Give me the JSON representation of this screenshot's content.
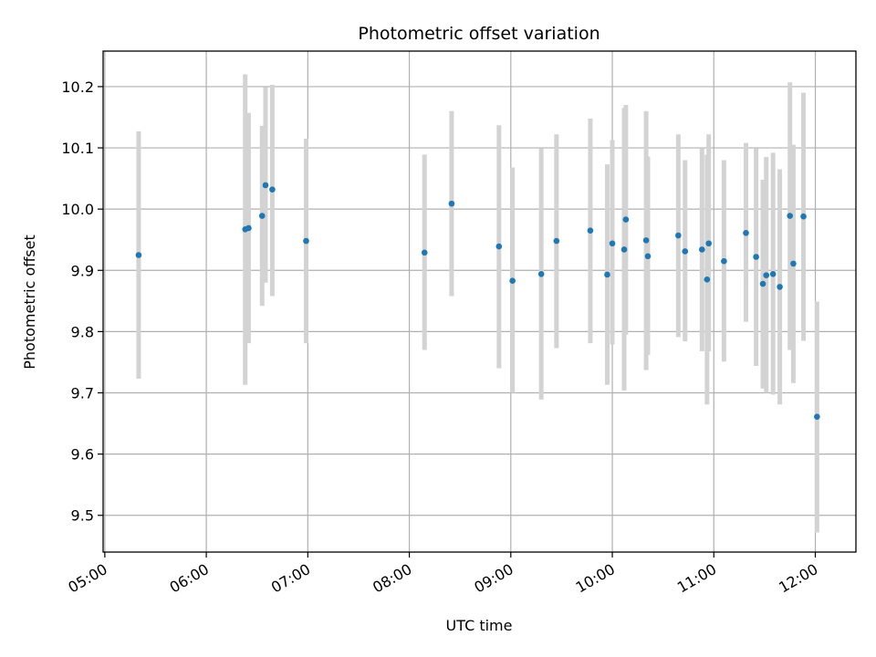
{
  "chart_data": {
    "type": "scatter",
    "title": "Photometric offset variation",
    "xlabel": "UTC time",
    "ylabel": "Photometric offset",
    "xlim": [
      "04:59",
      "12:24"
    ],
    "ylim": [
      9.44,
      10.258
    ],
    "x_ticks": [
      "05:00",
      "06:00",
      "07:00",
      "08:00",
      "09:00",
      "10:00",
      "11:00",
      "12:00"
    ],
    "y_ticks": [
      "9.5",
      "9.6",
      "9.7",
      "9.8",
      "9.9",
      "10.0",
      "10.1",
      "10.2"
    ],
    "grid": true,
    "points": [
      {
        "x": "05:20",
        "y": 9.925,
        "err_low": 9.723,
        "err_high": 10.127
      },
      {
        "x": "06:23",
        "y": 9.967,
        "err_low": 9.713,
        "err_high": 10.22
      },
      {
        "x": "06:25",
        "y": 9.969,
        "err_low": 9.781,
        "err_high": 10.157
      },
      {
        "x": "06:33",
        "y": 9.989,
        "err_low": 9.842,
        "err_high": 10.136
      },
      {
        "x": "06:35",
        "y": 10.039,
        "err_low": 9.88,
        "err_high": 10.199
      },
      {
        "x": "06:39",
        "y": 10.032,
        "err_low": 9.858,
        "err_high": 10.203
      },
      {
        "x": "06:59",
        "y": 9.948,
        "err_low": 9.781,
        "err_high": 10.115
      },
      {
        "x": "08:09",
        "y": 9.929,
        "err_low": 9.77,
        "err_high": 10.089
      },
      {
        "x": "08:25",
        "y": 10.009,
        "err_low": 9.858,
        "err_high": 10.16
      },
      {
        "x": "08:53",
        "y": 9.939,
        "err_low": 9.74,
        "err_high": 10.137
      },
      {
        "x": "09:01",
        "y": 9.883,
        "err_low": 9.7,
        "err_high": 10.068
      },
      {
        "x": "09:18",
        "y": 9.894,
        "err_low": 9.689,
        "err_high": 10.099
      },
      {
        "x": "09:27",
        "y": 9.948,
        "err_low": 9.773,
        "err_high": 10.122
      },
      {
        "x": "09:47",
        "y": 9.965,
        "err_low": 9.781,
        "err_high": 10.148
      },
      {
        "x": "09:57",
        "y": 9.893,
        "err_low": 9.713,
        "err_high": 10.073
      },
      {
        "x": "10:00",
        "y": 9.944,
        "err_low": 9.779,
        "err_high": 10.113
      },
      {
        "x": "10:07",
        "y": 9.934,
        "err_low": 9.704,
        "err_high": 10.165
      },
      {
        "x": "10:08",
        "y": 9.983,
        "err_low": 9.795,
        "err_high": 10.17
      },
      {
        "x": "10:20",
        "y": 9.949,
        "err_low": 9.737,
        "err_high": 10.16
      },
      {
        "x": "10:21",
        "y": 9.923,
        "err_low": 9.762,
        "err_high": 10.086
      },
      {
        "x": "10:39",
        "y": 9.957,
        "err_low": 9.791,
        "err_high": 10.122
      },
      {
        "x": "10:43",
        "y": 9.931,
        "err_low": 9.784,
        "err_high": 10.08
      },
      {
        "x": "10:53",
        "y": 9.934,
        "err_low": 9.768,
        "err_high": 10.099
      },
      {
        "x": "10:56",
        "y": 9.885,
        "err_low": 9.681,
        "err_high": 10.089
      },
      {
        "x": "10:57",
        "y": 9.944,
        "err_low": 9.768,
        "err_high": 10.122
      },
      {
        "x": "11:06",
        "y": 9.915,
        "err_low": 9.751,
        "err_high": 10.08
      },
      {
        "x": "11:19",
        "y": 9.961,
        "err_low": 9.816,
        "err_high": 10.108
      },
      {
        "x": "11:25",
        "y": 9.922,
        "err_low": 9.744,
        "err_high": 10.099
      },
      {
        "x": "11:29",
        "y": 9.878,
        "err_low": 9.707,
        "err_high": 10.048
      },
      {
        "x": "11:31",
        "y": 9.892,
        "err_low": 9.7,
        "err_high": 10.085
      },
      {
        "x": "11:35",
        "y": 9.894,
        "err_low": 9.697,
        "err_high": 10.092
      },
      {
        "x": "11:39",
        "y": 9.873,
        "err_low": 9.681,
        "err_high": 10.065
      },
      {
        "x": "11:45",
        "y": 9.989,
        "err_low": 9.77,
        "err_high": 10.207
      },
      {
        "x": "11:47",
        "y": 9.911,
        "err_low": 9.716,
        "err_high": 10.105
      },
      {
        "x": "11:53",
        "y": 9.988,
        "err_low": 9.785,
        "err_high": 10.19
      },
      {
        "x": "12:01",
        "y": 9.661,
        "err_low": 9.472,
        "err_high": 9.849
      }
    ],
    "colors": {
      "point": "#1f77b4",
      "errorbar": "#d3d3d3",
      "grid": "#b0b0b0"
    }
  }
}
